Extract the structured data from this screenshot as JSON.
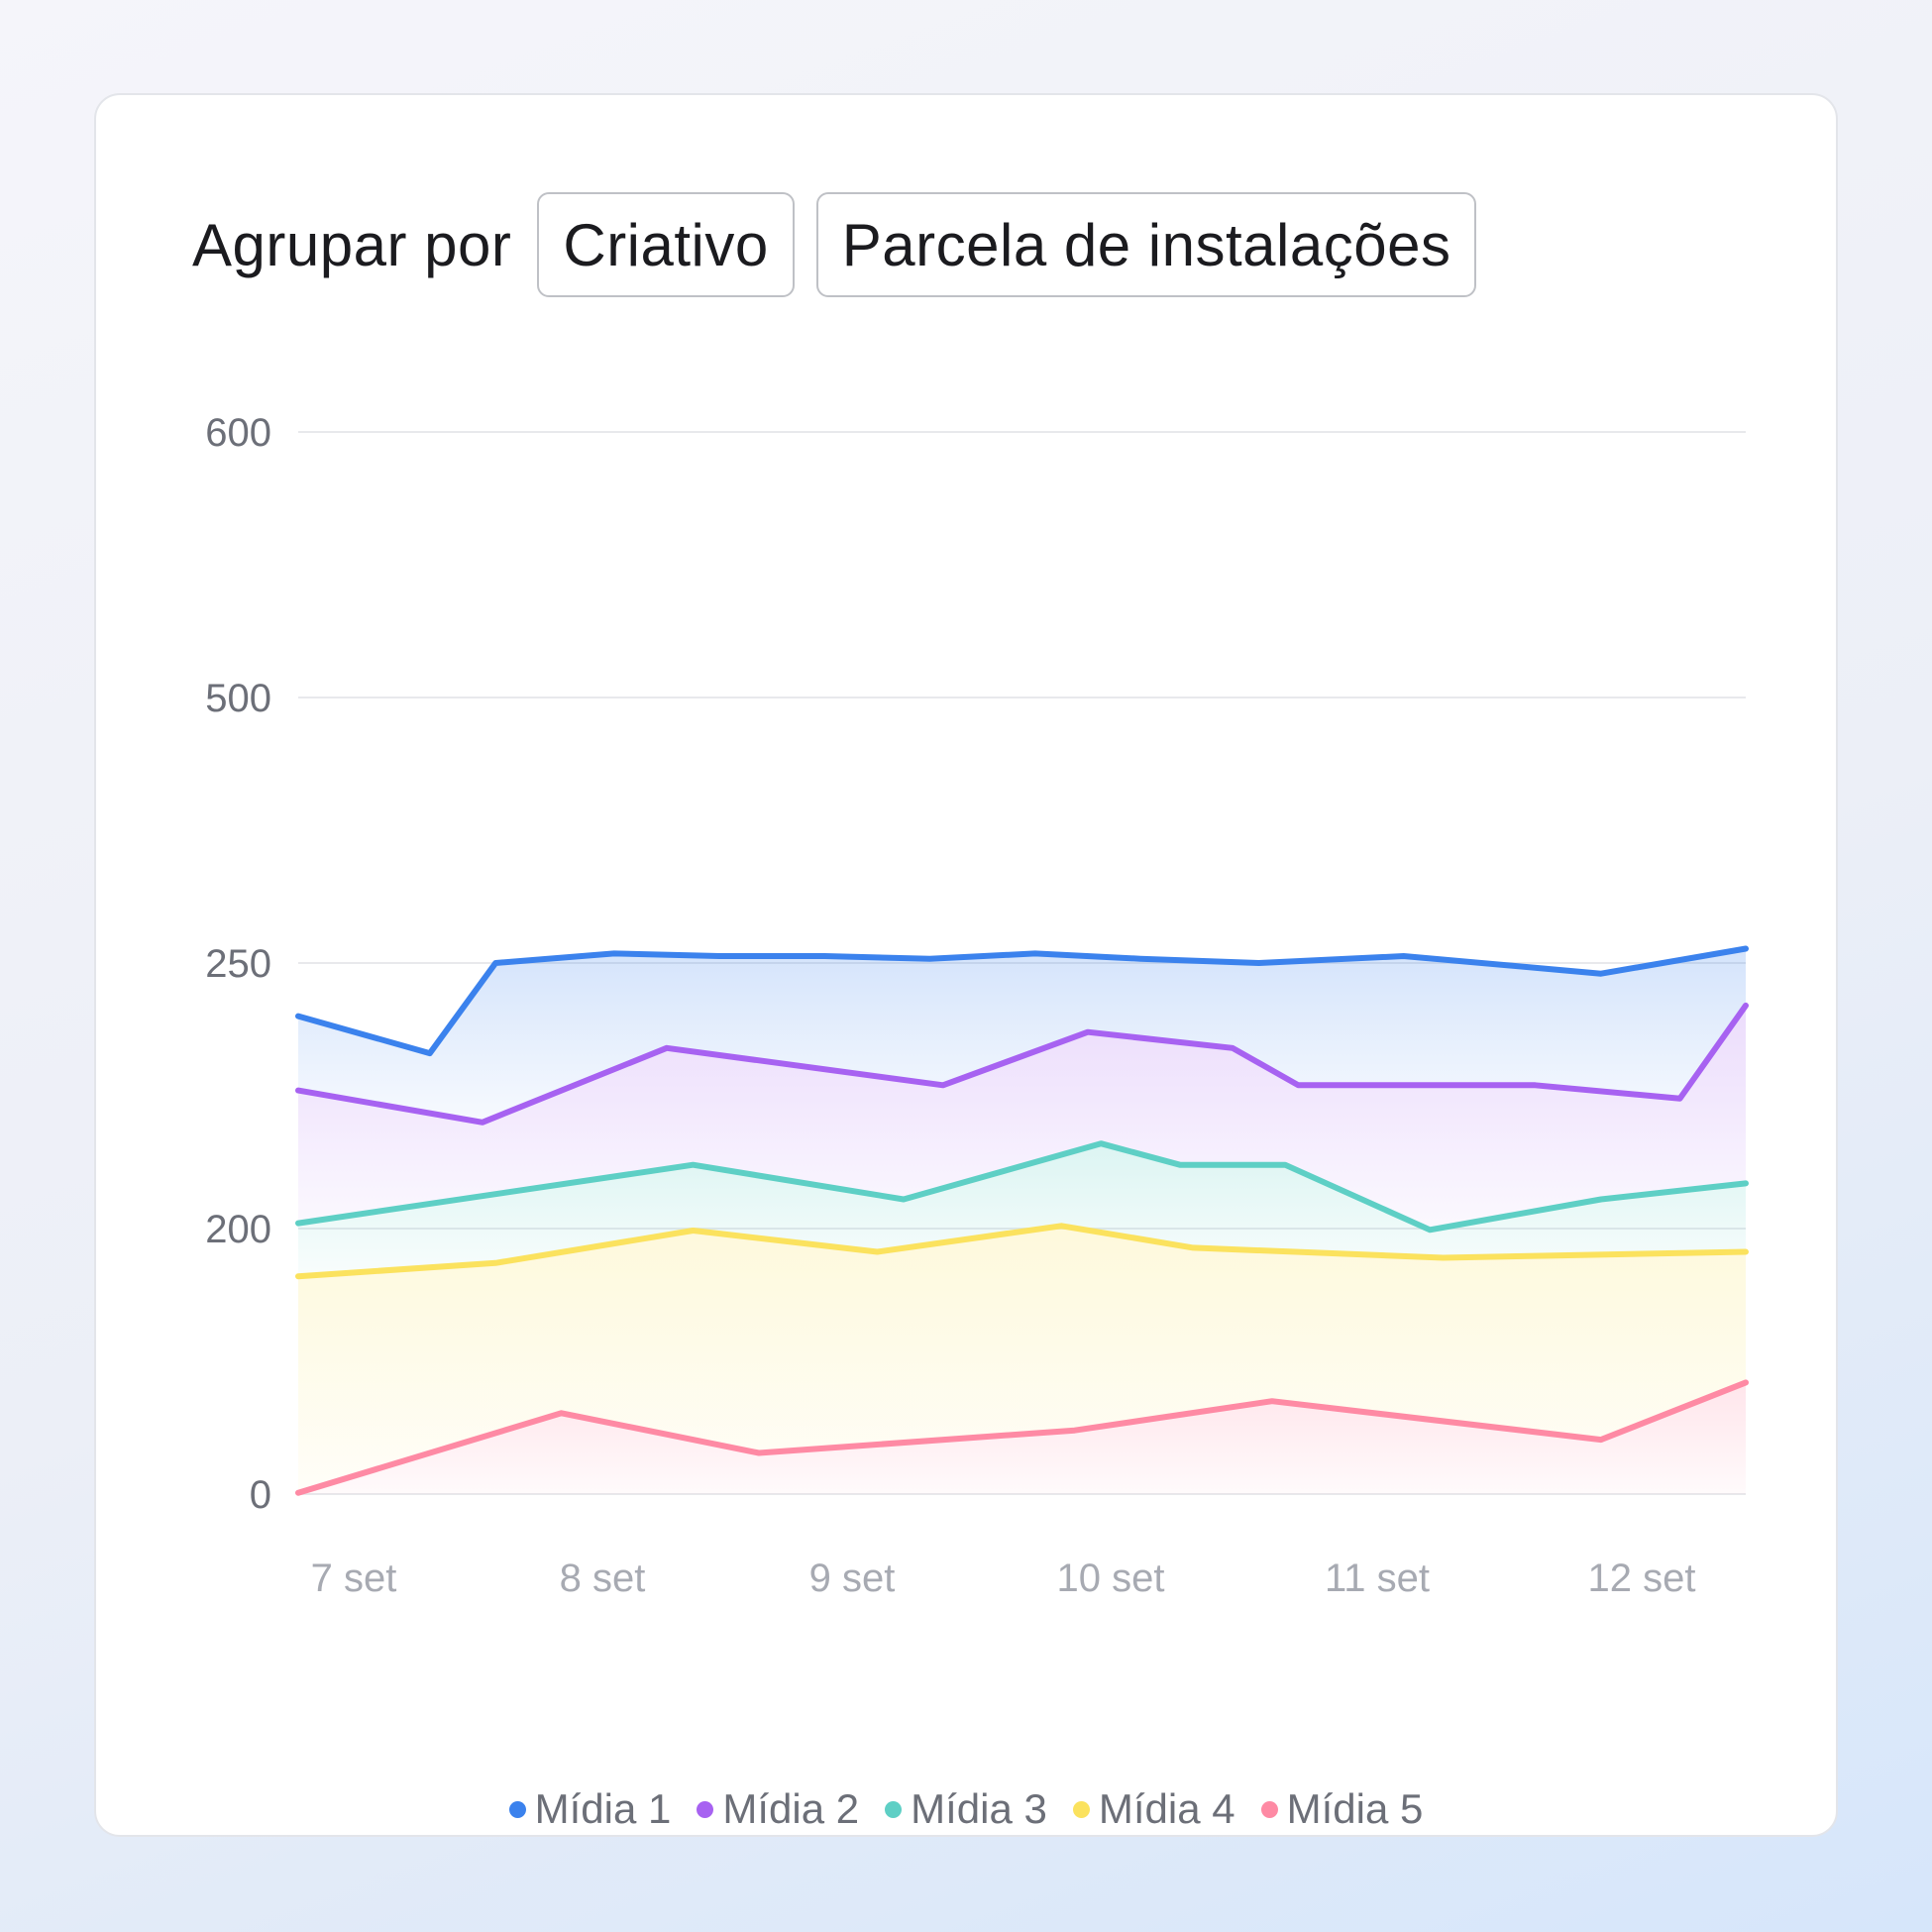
{
  "toolbar": {
    "group_label": "Agrupar por",
    "creative_button": "Criativo",
    "share_button": "Parcela de instalações"
  },
  "chart_data": {
    "type": "area",
    "title": "",
    "xlabel": "",
    "ylabel": "",
    "y_tick_labels": [
      "0",
      "200",
      "250",
      "500",
      "600"
    ],
    "x_tick_labels": [
      "7 set",
      "8 set",
      "9 set",
      "10 set",
      "11 set",
      "12 set"
    ],
    "grid": true,
    "legend_position": "bottom-center",
    "series": [
      {
        "name": "Mídia 1",
        "color": "#3b82ed",
        "x": [
          0,
          0.5,
          0.75,
          1.2,
          1.6,
          2.0,
          2.4,
          2.8,
          3.2,
          3.65,
          4.2,
          4.95,
          5.5
        ],
        "values": [
          240,
          233,
          250,
          259,
          256.5,
          256.5,
          254,
          259,
          254,
          250,
          256.5,
          248,
          263.5
        ]
      },
      {
        "name": "Mídia 2",
        "color": "#a762f1",
        "x": [
          0,
          0.7,
          1.4,
          2.45,
          3.0,
          3.55,
          3.8,
          4.7,
          5.25,
          5.5
        ],
        "values": [
          226,
          220,
          234,
          227,
          237,
          234,
          227,
          227,
          224.5,
          242
        ]
      },
      {
        "name": "Mídia 3",
        "color": "#5ecfc5",
        "x": [
          0,
          1.5,
          2.3,
          3.05,
          3.35,
          3.75,
          4.3,
          4.95,
          5.5
        ],
        "values": [
          201,
          212,
          205.5,
          216,
          212,
          212,
          199,
          205.5,
          208.5
        ]
      },
      {
        "name": "Mídia 4",
        "color": "#fbe25e",
        "x": [
          0,
          0.75,
          1.5,
          2.2,
          2.9,
          3.4,
          4.35,
          5.5
        ],
        "values": [
          164,
          174,
          198.5,
          182.5,
          200.5,
          185.5,
          178,
          182.5
        ]
      },
      {
        "name": "Mídia 5",
        "color": "#fe8aa4",
        "x": [
          0,
          1.0,
          1.75,
          2.95,
          3.7,
          4.95,
          5.5
        ],
        "values": [
          1,
          61,
          31,
          48,
          70,
          41,
          84
        ]
      }
    ]
  },
  "legend": {
    "items": [
      "Mídia 1",
      "Mídia 2",
      "Mídia 3",
      "Mídia 4",
      "Mídia 5"
    ]
  }
}
